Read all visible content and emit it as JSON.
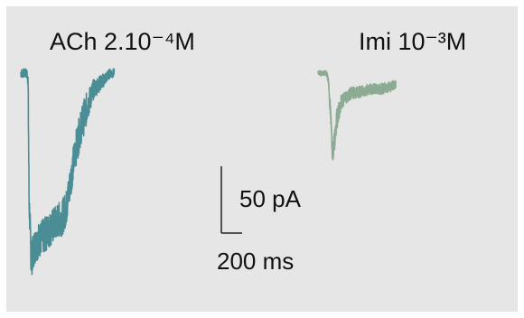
{
  "chart_data": [
    {
      "type": "line",
      "title": "ACh 2.10⁻⁴M",
      "color": "#4a8d94",
      "x_unit": "ms",
      "y_unit": "pA",
      "x": [
        0,
        60,
        70,
        80,
        100,
        130,
        170,
        220,
        300,
        360,
        400,
        440,
        480,
        520,
        580,
        640,
        700,
        800,
        860,
        900
      ],
      "values": [
        0,
        0,
        -5,
        -95,
        -140,
        -130,
        -125,
        -122,
        -115,
        -110,
        -108,
        -100,
        -80,
        -60,
        -40,
        -25,
        -12,
        -5,
        0,
        0
      ]
    },
    {
      "type": "line",
      "title": "Imi 10⁻³M",
      "color": "#8daa93",
      "x_unit": "ms",
      "y_unit": "pA",
      "x": [
        0,
        80,
        100,
        120,
        140,
        160,
        180,
        220,
        260,
        320,
        400,
        500,
        600,
        700,
        750
      ],
      "values": [
        0,
        0,
        -5,
        -30,
        -60,
        -50,
        -35,
        -22,
        -18,
        -15,
        -14,
        -12,
        -12,
        -10,
        -8
      ]
    }
  ],
  "scale_bar": {
    "y_label": "50 pA",
    "x_label": "200 ms",
    "y_value": 50,
    "x_value": 200
  }
}
